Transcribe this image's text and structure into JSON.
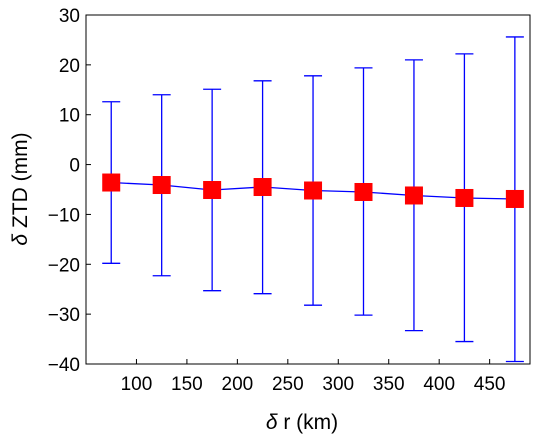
{
  "chart_data": {
    "type": "scatter",
    "title": "",
    "xlabel_symbol": "δ",
    "xlabel_text": " r (km)",
    "ylabel_symbol": "δ",
    "ylabel_text": " ZTD (mm)",
    "xlim": [
      50,
      490
    ],
    "ylim": [
      -40,
      30
    ],
    "xticks": [
      100,
      150,
      200,
      250,
      300,
      350,
      400,
      450
    ],
    "yticks": [
      -40,
      -30,
      -20,
      -10,
      0,
      10,
      20,
      30
    ],
    "grid": false,
    "series": [
      {
        "x": [
          75,
          125,
          175,
          225,
          275,
          325,
          375,
          425,
          475
        ],
        "y": [
          -3.6,
          -4.1,
          -5.1,
          -4.5,
          -5.2,
          -5.5,
          -6.2,
          -6.7,
          -6.9
        ],
        "error_upper": [
          12.6,
          14.0,
          15.1,
          16.8,
          17.8,
          19.4,
          21.0,
          22.2,
          25.6
        ],
        "error_lower": [
          -19.8,
          -22.3,
          -25.3,
          -25.9,
          -28.2,
          -30.2,
          -33.3,
          -35.5,
          -39.5
        ]
      }
    ],
    "colors": {
      "marker": "#ff0000",
      "line": "#0000ff",
      "axes": "#000000"
    }
  }
}
